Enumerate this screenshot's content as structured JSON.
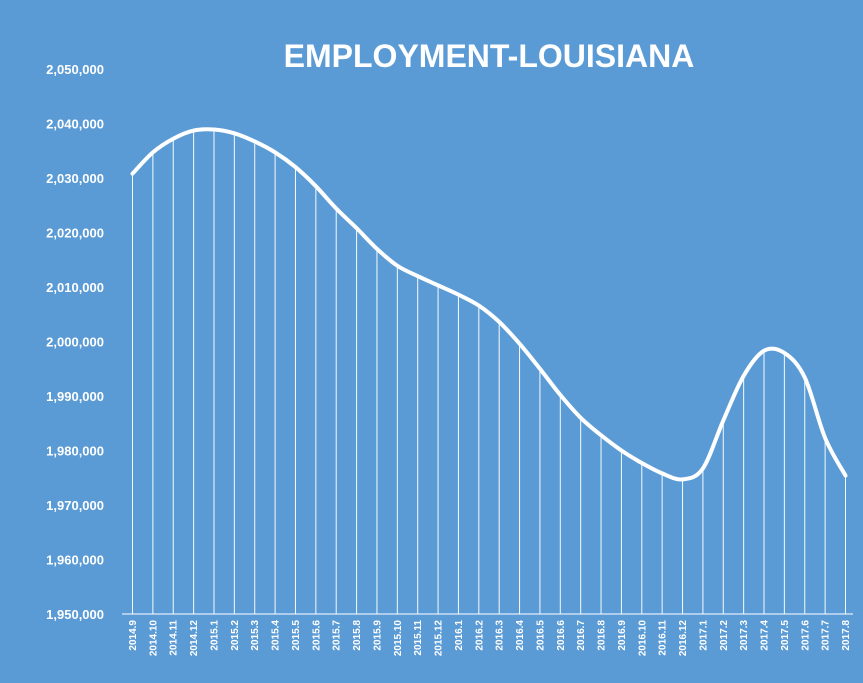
{
  "colors": {
    "background": "#5b9bd5",
    "line": "#ffffff",
    "text": "#ffffff"
  },
  "chart_data": {
    "type": "line",
    "title": "EMPLOYMENT-LOUISIANA",
    "xlabel": "",
    "ylabel": "",
    "ylim": [
      1950000,
      2050000
    ],
    "ytick_values": [
      1950000,
      1960000,
      1970000,
      1980000,
      1990000,
      2000000,
      2010000,
      2020000,
      2030000,
      2040000,
      2050000
    ],
    "ytick_labels": [
      "1,950,000",
      "1,960,000",
      "1,970,000",
      "1,980,000",
      "1,990,000",
      "2,000,000",
      "2,010,000",
      "2,020,000",
      "2,030,000",
      "2,040,000",
      "2,050,000"
    ],
    "grid": false,
    "drop_lines": true,
    "legend": "none",
    "categories": [
      "2014.9",
      "2014.10",
      "2014.11",
      "2014.12",
      "2015.1",
      "2015.2",
      "2015.3",
      "2015.4",
      "2015.5",
      "2015.6",
      "2015.7",
      "2015.8",
      "2015.9",
      "2015.10",
      "2015.11",
      "2015.12",
      "2016.1",
      "2016.2",
      "2016.3",
      "2016.4",
      "2016.5",
      "2016.6",
      "2016.7",
      "2016.8",
      "2016.9",
      "2016.10",
      "2016.11",
      "2016.12",
      "2017.1",
      "2017.2",
      "2017.3",
      "2017.4",
      "2017.5",
      "2017.6",
      "2017.7",
      "2017.8"
    ],
    "series": [
      {
        "values": [
          2030800,
          2034700,
          2037200,
          2038700,
          2038900,
          2038200,
          2036700,
          2034700,
          2032000,
          2028500,
          2024400,
          2020800,
          2017000,
          2013900,
          2012000,
          2010300,
          2008600,
          2006600,
          2003600,
          1999600,
          1995000,
          1990200,
          1986000,
          1982800,
          1980000,
          1977700,
          1975800,
          1974700,
          1976700,
          1985500,
          1993700,
          1998300,
          1997900,
          1993400,
          1982300,
          1975400
        ]
      }
    ]
  }
}
